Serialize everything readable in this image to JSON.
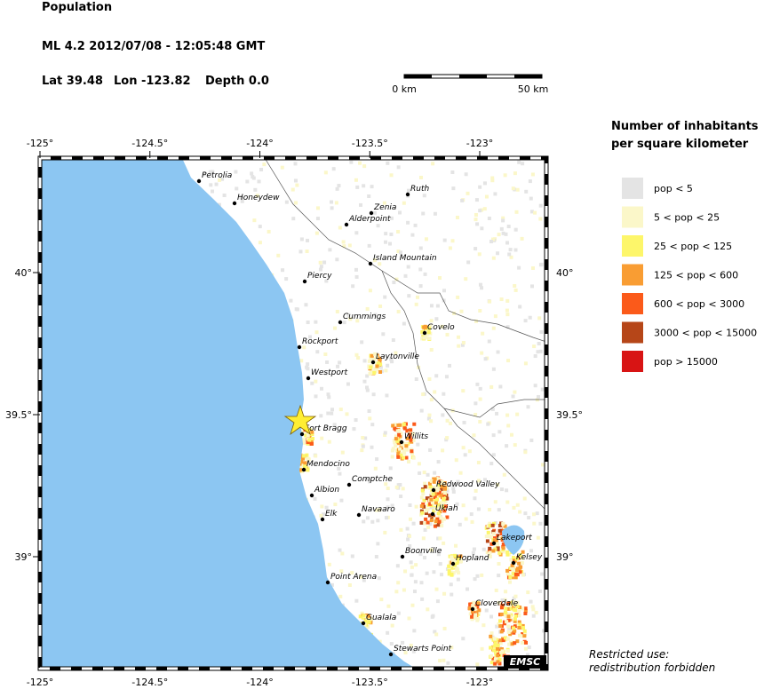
{
  "header": {
    "title": "Population",
    "event": "ML 4.2  2012/07/08 - 12:05:48 GMT",
    "lat": "Lat 39.48",
    "lon": "Lon -123.82",
    "depth": "Depth  0.0"
  },
  "scale_bar": {
    "start": "0 km",
    "end": "50 km"
  },
  "legend": {
    "title_lines": [
      "Number of inhabitants",
      "per square kilometer"
    ],
    "items": [
      {
        "label": "pop < 5",
        "color": "#e4e4e4"
      },
      {
        "label": "5 < pop < 25",
        "color": "#fbf7c9"
      },
      {
        "label": "25 < pop < 125",
        "color": "#fdf66a"
      },
      {
        "label": "125 < pop < 600",
        "color": "#f99d33"
      },
      {
        "label": "600 < pop < 3000",
        "color": "#fb5a1a"
      },
      {
        "label": "3000 < pop < 15000",
        "color": "#b64618"
      },
      {
        "label": "pop > 15000",
        "color": "#d81414"
      }
    ]
  },
  "map": {
    "lon_ticks": [
      {
        "value": -125,
        "label": "-125°"
      },
      {
        "value": -124.5,
        "label": "-124.5°"
      },
      {
        "value": -124,
        "label": "-124°"
      },
      {
        "value": -123.5,
        "label": "-123.5°"
      },
      {
        "value": -123,
        "label": "-123°"
      }
    ],
    "lat_ticks": [
      {
        "value": 40,
        "label": "40°"
      },
      {
        "value": 39.5,
        "label": "39.5°"
      },
      {
        "value": 39,
        "label": "39°"
      }
    ],
    "towns": [
      "Petrolia",
      "Honeydew",
      "Ruth",
      "Zenia",
      "Alderpoint",
      "Island Mountain",
      "Piercy",
      "Cummings",
      "Covelo",
      "Rockport",
      "Laytonville",
      "Westport",
      "Fort Bragg",
      "Willits",
      "Mendocino",
      "Comptche",
      "Redwood Valley",
      "Albion",
      "Ukiah",
      "Elk",
      "Navaaro",
      "Lakeport",
      "Boonville",
      "Hopland",
      "Kelsey",
      "Point Arena",
      "Cloverdale",
      "Gualala",
      "Stewarts Point"
    ],
    "logo": "EMSC"
  },
  "footer": {
    "lines": [
      "Restricted use:",
      "redistribution forbidden"
    ]
  }
}
